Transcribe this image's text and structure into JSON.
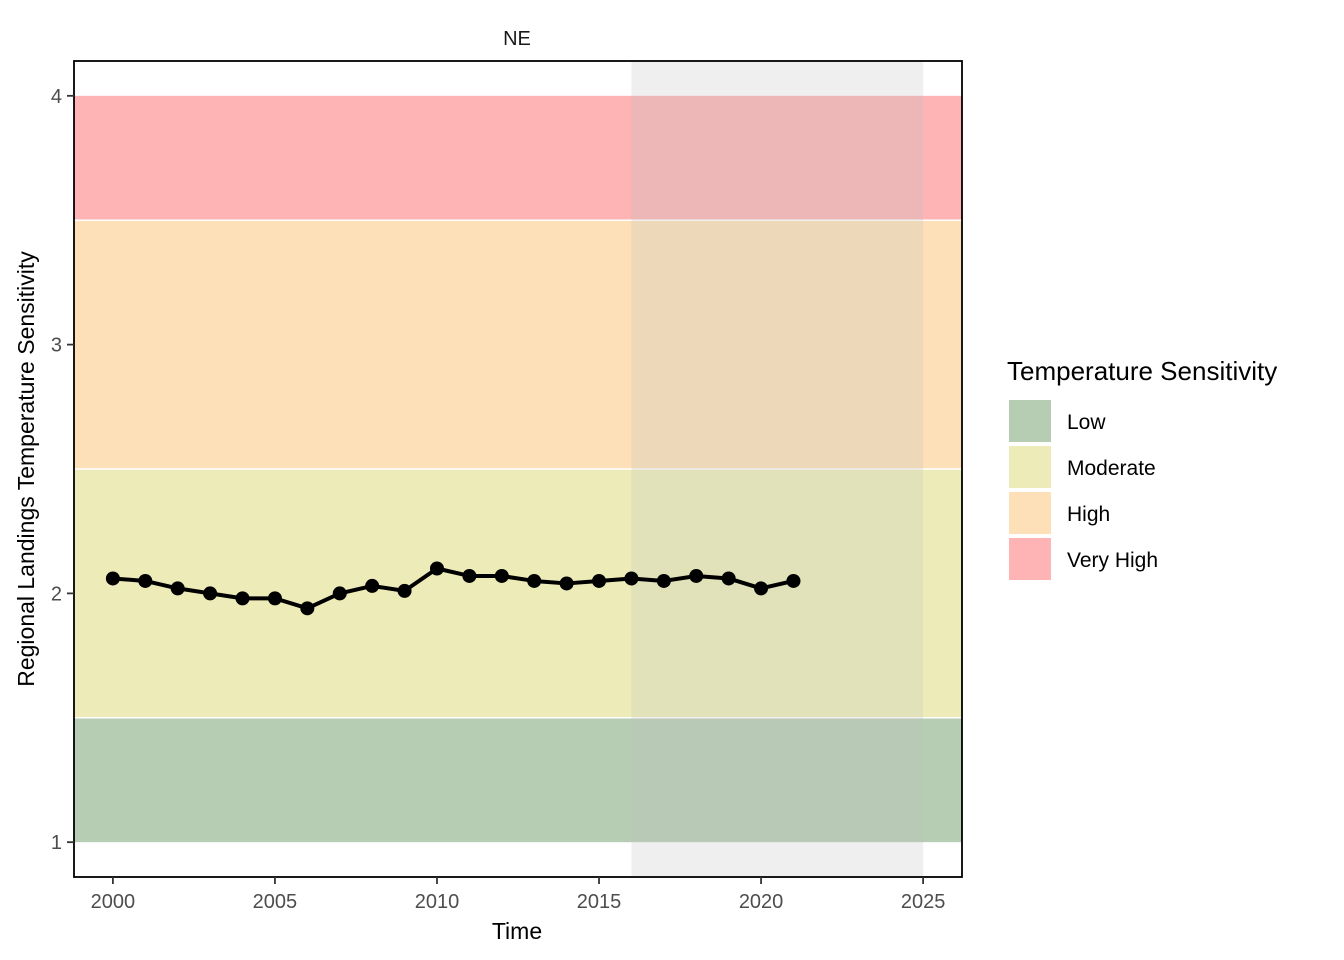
{
  "chart_data": {
    "type": "line",
    "facet_label": "NE",
    "xlabel": "Time",
    "ylabel": "Regional Landings Temperature Sensitivity",
    "xlim": [
      1998.8,
      2026.2
    ],
    "ylim": [
      0.86,
      4.14
    ],
    "x_ticks": [
      2000,
      2005,
      2010,
      2015,
      2020,
      2025
    ],
    "x_tick_labels": [
      "2000",
      "2005",
      "2010",
      "2015",
      "2020",
      "2025"
    ],
    "y_ticks": [
      1,
      2,
      3,
      4
    ],
    "y_tick_labels": [
      "1",
      "2",
      "3",
      "4"
    ],
    "grid": false,
    "shaded_period": {
      "start": 2016,
      "end": 2025,
      "color": "#bfbfbf"
    },
    "bands": [
      {
        "name": "Low",
        "ymin": 1.0,
        "ymax": 1.5,
        "color": "#b6ccb3"
      },
      {
        "name": "Moderate",
        "ymin": 1.5,
        "ymax": 2.5,
        "color": "#edecb9"
      },
      {
        "name": "High",
        "ymin": 2.5,
        "ymax": 3.5,
        "color": "#fde0b8"
      },
      {
        "name": "Very High",
        "ymin": 3.5,
        "ymax": 4.0,
        "color": "#feb4b5"
      }
    ],
    "series": [
      {
        "color": "#000000",
        "x": [
          2000,
          2001,
          2002,
          2003,
          2004,
          2005,
          2006,
          2007,
          2008,
          2009,
          2010,
          2011,
          2012,
          2013,
          2014,
          2015,
          2016,
          2017,
          2018,
          2019,
          2020,
          2021
        ],
        "y": [
          2.06,
          2.05,
          2.02,
          2.0,
          1.98,
          1.98,
          1.94,
          2.0,
          2.03,
          2.01,
          2.1,
          2.07,
          2.07,
          2.05,
          2.04,
          2.05,
          2.06,
          2.05,
          2.07,
          2.06,
          2.02,
          2.05
        ]
      }
    ],
    "legend": {
      "title": "Temperature Sensitivity",
      "position": "right",
      "entries": [
        {
          "label": "Low",
          "color": "#b6ccb3"
        },
        {
          "label": "Moderate",
          "color": "#edecb9"
        },
        {
          "label": "High",
          "color": "#fde0b8"
        },
        {
          "label": "Very High",
          "color": "#feb4b5"
        }
      ]
    }
  }
}
